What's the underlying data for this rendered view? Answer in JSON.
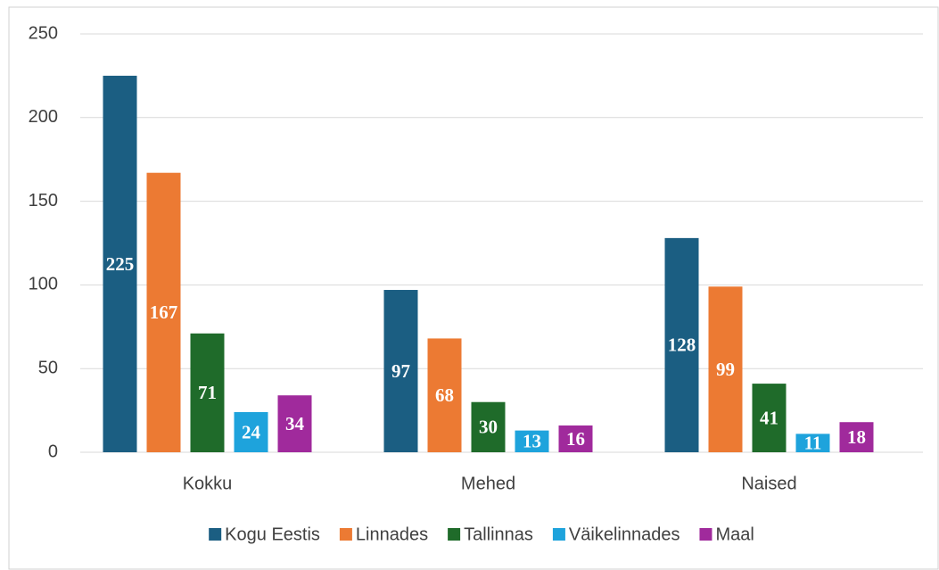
{
  "chart_data": {
    "type": "bar",
    "categories": [
      "Kokku",
      "Mehed",
      "Naised"
    ],
    "series": [
      {
        "name": "Kogu Eestis",
        "color": "#1b5e82",
        "values": [
          225,
          97,
          128
        ]
      },
      {
        "name": "Linnades",
        "color": "#ec7a33",
        "values": [
          167,
          68,
          99
        ]
      },
      {
        "name": "Tallinnas",
        "color": "#1f6b2a",
        "values": [
          71,
          30,
          41
        ]
      },
      {
        "name": "Väikelinnades",
        "color": "#1ea3dc",
        "values": [
          24,
          13,
          11
        ]
      },
      {
        "name": "Maal",
        "color": "#a02a9c",
        "values": [
          34,
          16,
          18
        ]
      }
    ],
    "ylim": [
      0,
      250
    ],
    "yticks": [
      0,
      50,
      100,
      150,
      200,
      250
    ],
    "grid": true,
    "legend": "bottom"
  }
}
